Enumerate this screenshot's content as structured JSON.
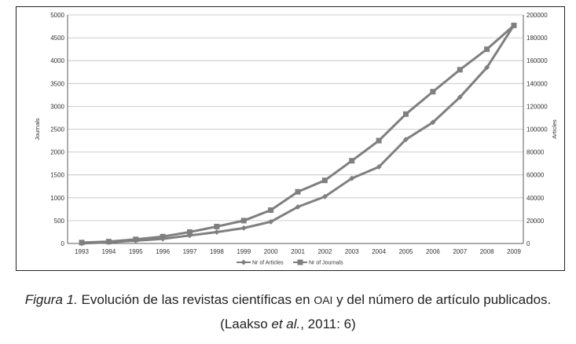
{
  "chart_data": {
    "type": "line",
    "categories": [
      "1993",
      "1994",
      "1995",
      "1996",
      "1997",
      "1998",
      "1999",
      "2000",
      "2001",
      "2002",
      "2003",
      "2004",
      "2005",
      "2006",
      "2007",
      "2008",
      "2009"
    ],
    "y_left": {
      "label": "Journals",
      "range": [
        0,
        5000
      ],
      "ticks": [
        "0",
        "500",
        "1000",
        "1500",
        "2000",
        "2500",
        "3000",
        "3500",
        "4000",
        "4500",
        "5000"
      ]
    },
    "y_right": {
      "label": "Articles",
      "range": [
        0,
        200000
      ],
      "ticks": [
        "0",
        "20000",
        "40000",
        "60000",
        "80000",
        "100000",
        "120000",
        "140000",
        "160000",
        "180000",
        "200000"
      ]
    },
    "series": [
      {
        "name": "Nr of Articles",
        "axis": "right",
        "marker": "diamond",
        "values": [
          100,
          1000,
          2500,
          4000,
          7000,
          10000,
          13500,
          19000,
          32000,
          41000,
          57000,
          67000,
          91000,
          106000,
          128000,
          154000,
          191000
        ]
      },
      {
        "name": "Nr of Journals",
        "axis": "left",
        "marker": "square",
        "values": [
          20,
          40,
          90,
          150,
          250,
          370,
          500,
          730,
          1130,
          1380,
          1810,
          2250,
          2830,
          3320,
          3800,
          4250,
          4770
        ]
      }
    ],
    "grid": "horizontal",
    "legend_position": "bottom",
    "colors": {
      "line": "#7f7f7f",
      "grid": "#bfbfbf",
      "axis": "#333333"
    }
  },
  "caption": {
    "line1_prefix": "Figura 1.",
    "line1_text": " Evolución de las revistas científicas en ",
    "line1_oai": "OAI",
    "line1_suffix": " y del número de artículo publicados.",
    "line2_open": "(Laakso ",
    "line2_etal": "et al.",
    "line2_close": ", 2011: 6)"
  }
}
